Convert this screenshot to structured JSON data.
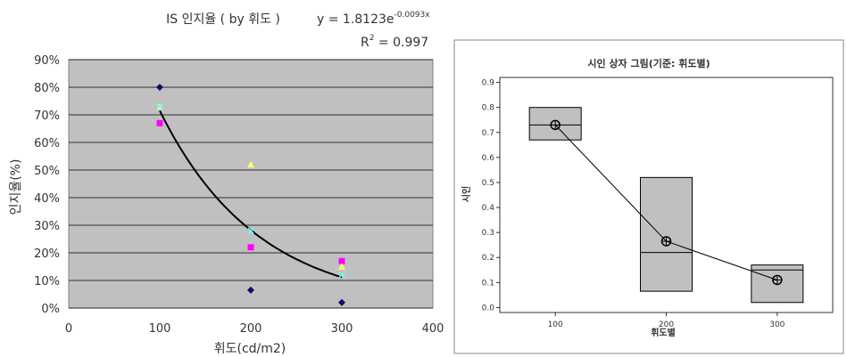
{
  "chart_data": [
    {
      "type": "scatter",
      "title": "IS 인지율 ( by 휘도 )",
      "equation": {
        "base": "y = 1.8123e",
        "exponent": "-0.0093x"
      },
      "r_squared": {
        "label": "R",
        "sup": "2",
        "value": " = 0.997"
      },
      "xlabel": "휘도(cd/m2)",
      "ylabel": "인지율(%)",
      "xlim": [
        0,
        400
      ],
      "ylim": [
        0,
        0.9
      ],
      "xticks": [
        "0",
        "100",
        "200",
        "300",
        "400"
      ],
      "yticks": [
        "0%",
        "10%",
        "20%",
        "30%",
        "40%",
        "50%",
        "60%",
        "70%",
        "80%",
        "90%"
      ],
      "grid": true,
      "background": "#c0c0c0",
      "series": [
        {
          "marker": "diamond",
          "color": "#0a0a6e",
          "points": [
            [
              100,
              0.8
            ],
            [
              200,
              0.065
            ],
            [
              300,
              0.02
            ]
          ]
        },
        {
          "marker": "square",
          "color": "#ff00ff",
          "points": [
            [
              100,
              0.67
            ],
            [
              200,
              0.22
            ],
            [
              300,
              0.17
            ]
          ]
        },
        {
          "marker": "triangle",
          "color": "#ffff66",
          "points": [
            [
              100,
              0.73
            ],
            [
              200,
              0.52
            ],
            [
              300,
              0.15
            ]
          ]
        },
        {
          "marker": "x",
          "color": "#66ffff",
          "points": [
            [
              100,
              0.73
            ],
            [
              200,
              0.28
            ],
            [
              300,
              0.12
            ]
          ]
        }
      ],
      "trendline": {
        "type": "exponential",
        "a": 1.8123,
        "b": -0.0093,
        "x_range": [
          100,
          300
        ],
        "color": "#000000"
      }
    },
    {
      "type": "box",
      "title": "시인 상자 그림(기준: 휘도별)",
      "xlabel": "휘도별",
      "ylabel": "시인",
      "categories": [
        "100",
        "200",
        "300"
      ],
      "yticks": [
        "0.0",
        "0.1",
        "0.2",
        "0.3",
        "0.4",
        "0.5",
        "0.6",
        "0.7",
        "0.8",
        "0.9"
      ],
      "ylim": [
        -0.02,
        0.92
      ],
      "boxes": [
        {
          "min": 0.67,
          "q1": 0.67,
          "median": 0.73,
          "q3": 0.8,
          "max": 0.8,
          "mean": 0.73
        },
        {
          "min": 0.065,
          "q1": 0.065,
          "median": 0.22,
          "q3": 0.52,
          "max": 0.52,
          "mean": 0.265
        },
        {
          "min": 0.02,
          "q1": 0.02,
          "median": 0.15,
          "q3": 0.17,
          "max": 0.17,
          "mean": 0.11
        }
      ],
      "box_color": "#c0c0c0",
      "mean_connect_line": true
    }
  ]
}
